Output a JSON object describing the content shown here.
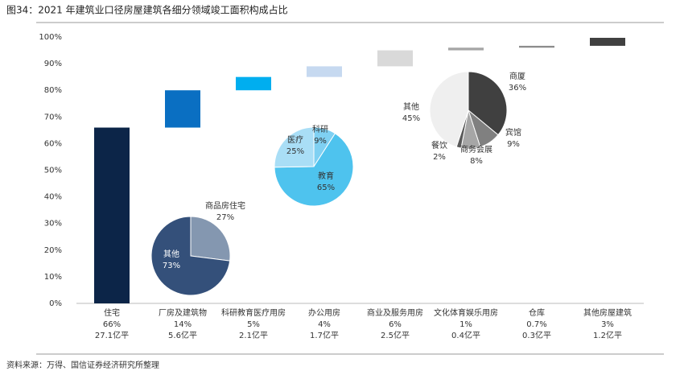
{
  "chart_data": {
    "type": "waterfall",
    "title": "图34：2021 年建筑业口径房屋建筑各细分领域竣工面积构成占比",
    "categories": [
      "住宅",
      "厂房及建筑物",
      "科研教育医疗用房",
      "办公用房",
      "商业及服务用房",
      "文化体育娱乐用房",
      "仓库",
      "其他房屋建筑"
    ],
    "values": [
      66,
      14,
      5,
      4,
      6,
      1,
      0.7,
      3
    ],
    "value_labels": [
      "66%",
      "14%",
      "5%",
      "4%",
      "6%",
      "1%",
      "0.7%",
      "3%"
    ],
    "area_labels": [
      "27.1亿平",
      "5.6亿平",
      "2.1亿平",
      "1.7亿平",
      "2.5亿平",
      "0.4亿平",
      "0.3亿平",
      "1.2亿平"
    ],
    "colors": [
      "#0c2548",
      "#0a6fc2",
      "#00aeef",
      "#c6d9f0",
      "#d9d9d9",
      "#a6a6a6",
      "#8c8c8c",
      "#404040"
    ],
    "ylim": [
      0,
      100
    ],
    "yticks": [
      {
        "value": 0,
        "label": "0%"
      },
      {
        "value": 10,
        "label": "10%"
      },
      {
        "value": 20,
        "label": "20%"
      },
      {
        "value": 30,
        "label": "30%"
      },
      {
        "value": 40,
        "label": "40%"
      },
      {
        "value": 50,
        "label": "50%"
      },
      {
        "value": 60,
        "label": "60%"
      },
      {
        "value": 70,
        "label": "70%"
      },
      {
        "value": 80,
        "label": "80%"
      },
      {
        "value": 90,
        "label": "90%"
      },
      {
        "value": 100,
        "label": "100%"
      }
    ],
    "pies": [
      {
        "labels": [
          "商品房住宅",
          "其他"
        ],
        "values": [
          27,
          73
        ],
        "value_labels": [
          "27%",
          "73%"
        ],
        "colors": [
          "#8497b0",
          "#34507a"
        ]
      },
      {
        "labels": [
          "科研",
          "教育",
          "医疗"
        ],
        "values": [
          9,
          65,
          25
        ],
        "value_labels": [
          "9%",
          "65%",
          "25%"
        ],
        "colors": [
          "#7fd0f2",
          "#4ec3ee",
          "#a9def6"
        ]
      },
      {
        "labels": [
          "商厦",
          "宾馆",
          "商务会展",
          "餐饮",
          "其他"
        ],
        "values": [
          36,
          9,
          8,
          2,
          45
        ],
        "value_labels": [
          "36%",
          "9%",
          "8%",
          "2%",
          "45%"
        ],
        "colors": [
          "#404040",
          "#808080",
          "#a6a6a6",
          "#595959",
          "#efefef"
        ]
      }
    ]
  },
  "source": "资料来源：万得、国信证券经济研究所整理"
}
